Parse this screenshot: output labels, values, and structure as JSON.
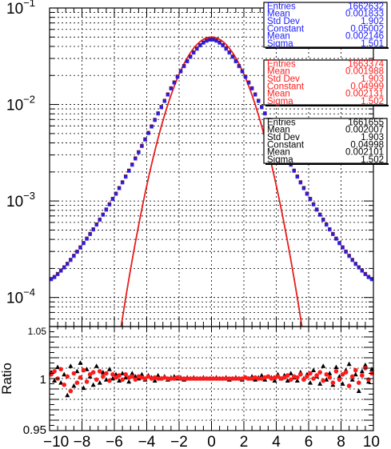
{
  "chart_data": {
    "type": "scatter",
    "main": {
      "x_range": [
        -10,
        10
      ],
      "y_scale": "log",
      "y_range": [
        5e-05,
        0.1
      ],
      "y_ticks": [
        {
          "value": 0.1,
          "base": "10",
          "exp": "−1"
        },
        {
          "value": 0.01,
          "base": "10",
          "exp": "−2"
        },
        {
          "value": 0.001,
          "base": "10",
          "exp": "−3"
        },
        {
          "value": 0.0001,
          "base": "10",
          "exp": "−4"
        }
      ],
      "grid": true,
      "series": [
        {
          "color": "#1a1aff",
          "marker": "square",
          "x": [
            -9.9,
            -9.7,
            -9.5,
            -9.3,
            -9.1,
            -8.9,
            -8.7,
            -8.5,
            -8.3,
            -8.1,
            -7.9,
            -7.7,
            -7.5,
            -7.3,
            -7.1,
            -6.9,
            -6.7,
            -6.5,
            -6.3,
            -6.1,
            -5.9,
            -5.7,
            -5.5,
            -5.3,
            -5.1,
            -4.9,
            -4.7,
            -4.5,
            -4.3,
            -4.1,
            -3.9,
            -3.7,
            -3.5,
            -3.3,
            -3.1,
            -2.9,
            -2.7,
            -2.5,
            -2.3,
            -2.1,
            -1.9,
            -1.7,
            -1.5,
            -1.3,
            -1.1,
            -0.9,
            -0.7,
            -0.5,
            -0.3,
            -0.1,
            0.1,
            0.3,
            0.5,
            0.7,
            0.9,
            1.1,
            1.3,
            1.5,
            1.7,
            1.9,
            2.1,
            2.3,
            2.5,
            2.7,
            2.9,
            3.1,
            3.3,
            3.5,
            3.7,
            3.9,
            4.1,
            4.3,
            4.5,
            4.7,
            4.9,
            5.1,
            5.3,
            5.5,
            5.7,
            5.9,
            6.1,
            6.3,
            6.5,
            6.7,
            6.9,
            7.1,
            7.3,
            7.5,
            7.7,
            7.9,
            8.1,
            8.3,
            8.5,
            8.7,
            8.9,
            9.1,
            9.3,
            9.5,
            9.7,
            9.9
          ],
          "y": [
            0.000155,
            0.000163,
            0.000175,
            0.00019,
            0.000205,
            0.000223,
            0.000245,
            0.00027,
            0.000298,
            0.00033,
            0.000366,
            0.000407,
            0.000455,
            0.000508,
            0.00057,
            0.00064,
            0.000722,
            0.000815,
            0.000923,
            0.00105,
            0.00119,
            0.00136,
            0.00156,
            0.00179,
            0.00206,
            0.00238,
            0.00276,
            0.0032,
            0.00372,
            0.00434,
            0.00507,
            0.00592,
            0.00692,
            0.00808,
            0.0094,
            0.0109,
            0.0127,
            0.0147,
            0.0169,
            0.0194,
            0.0221,
            0.025,
            0.0281,
            0.0313,
            0.0346,
            0.0379,
            0.0411,
            0.0438,
            0.0459,
            0.0471,
            0.0471,
            0.0459,
            0.0438,
            0.0411,
            0.0379,
            0.0346,
            0.0313,
            0.0281,
            0.025,
            0.0221,
            0.0194,
            0.0169,
            0.0147,
            0.0127,
            0.0109,
            0.0094,
            0.00808,
            0.00692,
            0.00592,
            0.00507,
            0.00434,
            0.00372,
            0.0032,
            0.00276,
            0.00238,
            0.00206,
            0.00179,
            0.00156,
            0.00136,
            0.00119,
            0.00105,
            0.000923,
            0.000815,
            0.000722,
            0.00064,
            0.00057,
            0.000508,
            0.000455,
            0.000407,
            0.000366,
            0.00033,
            0.000298,
            0.00027,
            0.000245,
            0.000223,
            0.000205,
            0.00019,
            0.000175,
            0.000163,
            0.000155
          ]
        }
      ],
      "fits": [
        {
          "color": "#000000",
          "constant": 0.04998,
          "mean": 0.002101,
          "sigma": 1.502
        },
        {
          "color": "#ff1a1a",
          "constant": 0.04999,
          "mean": 0.002131,
          "sigma": 1.502
        }
      ]
    },
    "ratio": {
      "ylabel": "Ratio",
      "y_range": [
        0.95,
        1.05
      ],
      "y_ticks": [
        {
          "value": 0.95,
          "label": "0.95"
        },
        {
          "value": 1.0,
          "label": "1"
        },
        {
          "value": 1.05,
          "label": "1.05"
        }
      ],
      "x_ticks": [
        {
          "value": -10,
          "label": "−10"
        },
        {
          "value": -8,
          "label": "−8"
        },
        {
          "value": -6,
          "label": "−6"
        },
        {
          "value": -4,
          "label": "−4"
        },
        {
          "value": -2,
          "label": "−2"
        },
        {
          "value": 0,
          "label": "0"
        },
        {
          "value": 2,
          "label": "2"
        },
        {
          "value": 4,
          "label": "4"
        },
        {
          "value": 6,
          "label": "6"
        },
        {
          "value": 8,
          "label": "8"
        },
        {
          "value": 10,
          "label": "10"
        }
      ],
      "grid": true,
      "series": [
        {
          "color": "#000000",
          "marker": "triangle",
          "x": [
            -9.9,
            -9.7,
            -9.5,
            -9.3,
            -9.1,
            -8.9,
            -8.7,
            -8.5,
            -8.3,
            -8.1,
            -7.9,
            -7.7,
            -7.5,
            -7.3,
            -7.1,
            -6.9,
            -6.7,
            -6.5,
            -6.3,
            -6.1,
            -5.9,
            -5.7,
            -5.5,
            -5.3,
            -5.1,
            -4.9,
            -4.7,
            -4.5,
            -4.3,
            -4.1,
            -3.9,
            -3.7,
            -3.5,
            -3.3,
            -3.1,
            -2.9,
            -2.7,
            -2.5,
            -2.3,
            -2.1,
            -1.9,
            -1.7,
            -1.5,
            -1.3,
            -1.1,
            -0.9,
            -0.7,
            -0.5,
            -0.3,
            -0.1,
            0.1,
            0.3,
            0.5,
            0.7,
            0.9,
            1.1,
            1.3,
            1.5,
            1.7,
            1.9,
            2.1,
            2.3,
            2.5,
            2.7,
            2.9,
            3.1,
            3.3,
            3.5,
            3.7,
            3.9,
            4.1,
            4.3,
            4.5,
            4.7,
            4.9,
            5.1,
            5.3,
            5.5,
            5.7,
            5.9,
            6.1,
            6.3,
            6.5,
            6.7,
            6.9,
            7.1,
            7.3,
            7.5,
            7.7,
            7.9,
            8.1,
            8.3,
            8.5,
            8.7,
            8.9,
            9.1,
            9.3,
            9.5,
            9.7,
            9.9
          ],
          "y": [
            1.006,
            0.998,
            1.011,
            0.996,
            1.004,
            0.984,
            1.012,
            0.993,
            1.007,
            1.015,
            0.991,
            1.009,
            1.002,
            0.994,
            1.012,
            0.996,
            1.006,
            0.999,
            1.009,
            1.0,
            1.004,
            0.998,
            1.005,
            1.001,
            0.997,
            1.005,
            1.002,
            1.0,
            1.004,
            0.999,
            1.003,
            1.001,
            0.998,
            1.003,
            1.0,
            1.002,
            0.999,
            1.001,
            1.002,
            1.0,
            1.001,
            0.999,
            1.001,
            1.0,
            1.001,
            1.0,
            1.0,
            1.001,
            1.0,
            1.0,
            1.0,
            1.001,
            1.0,
            1.0,
            1.001,
            0.999,
            1.0,
            1.001,
            1.0,
            0.999,
            1.001,
            1.0,
            1.002,
            0.999,
            1.001,
            1.003,
            0.999,
            1.002,
            1.001,
            0.998,
            1.004,
            1.0,
            1.003,
            0.998,
            1.005,
            1.001,
            0.998,
            1.006,
            1.0,
            1.004,
            0.996,
            1.008,
            1.002,
            0.995,
            1.012,
            0.999,
            1.005,
            0.994,
            1.011,
            1.002,
            0.995,
            1.008,
            1.014,
            0.999,
            1.004,
            0.988,
            1.007,
            1.013,
            0.997,
            1.009
          ]
        },
        {
          "color": "#ff1a1a",
          "marker": "circle",
          "x": [
            -9.9,
            -9.7,
            -9.5,
            -9.3,
            -9.1,
            -8.9,
            -8.7,
            -8.5,
            -8.3,
            -8.1,
            -7.9,
            -7.7,
            -7.5,
            -7.3,
            -7.1,
            -6.9,
            -6.7,
            -6.5,
            -6.3,
            -6.1,
            -5.9,
            -5.7,
            -5.5,
            -5.3,
            -5.1,
            -4.9,
            -4.7,
            -4.5,
            -4.3,
            -4.1,
            -3.9,
            -3.7,
            -3.5,
            -3.3,
            -3.1,
            -2.9,
            -2.7,
            -2.5,
            -2.3,
            -2.1,
            -1.9,
            -1.7,
            -1.5,
            -1.3,
            -1.1,
            -0.9,
            -0.7,
            -0.5,
            -0.3,
            -0.1,
            0.1,
            0.3,
            0.5,
            0.7,
            0.9,
            1.1,
            1.3,
            1.5,
            1.7,
            1.9,
            2.1,
            2.3,
            2.5,
            2.7,
            2.9,
            3.1,
            3.3,
            3.5,
            3.7,
            3.9,
            4.1,
            4.3,
            4.5,
            4.7,
            4.9,
            5.1,
            5.3,
            5.5,
            5.7,
            5.9,
            6.1,
            6.3,
            6.5,
            6.7,
            6.9,
            7.1,
            7.3,
            7.5,
            7.7,
            7.9,
            8.1,
            8.3,
            8.5,
            8.7,
            8.9,
            9.1,
            9.3,
            9.5,
            9.7,
            9.9
          ],
          "y": [
            1.004,
            1.007,
            1.0,
            1.009,
            0.994,
            1.002,
            0.988,
            1.005,
            0.996,
            1.001,
            1.008,
            0.997,
            1.004,
            1.006,
            0.999,
            1.007,
            1.002,
            1.005,
            0.998,
            1.004,
            1.001,
            1.003,
            0.999,
            1.004,
            1.001,
            1.002,
            0.999,
            1.002,
            1.001,
            1.0,
            1.002,
            1.0,
            1.001,
            1.0,
            1.0,
            1.001,
            1.0,
            1.0,
            1.0,
            1.001,
            1.0,
            1.0,
            1.0,
            1.0,
            1.0,
            1.0,
            1.0,
            1.0,
            1.0,
            1.0,
            1.0,
            1.0,
            1.0,
            1.0,
            1.0,
            1.0,
            1.0,
            1.0,
            1.0,
            1.0,
            1.001,
            1.0,
            1.0,
            1.001,
            1.0,
            1.0,
            1.001,
            1.002,
            1.0,
            1.001,
            1.002,
            1.0,
            1.001,
            1.003,
            0.999,
            1.002,
            1.001,
            1.004,
            0.999,
            1.002,
            1.005,
            1.0,
            1.003,
            1.006,
            0.998,
            1.004,
            1.001,
            0.996,
            1.007,
            0.999,
            1.004,
            1.006,
            0.993,
            1.002,
            1.008,
            0.996,
            1.003,
            1.01,
            0.999,
            1.005
          ]
        }
      ]
    },
    "stats_boxes": [
      {
        "color": "#1a1aff",
        "rows": [
          {
            "label": "Entries",
            "value": "1662632"
          },
          {
            "label": "Mean",
            "value": "0.001833"
          },
          {
            "label": "Std Dev",
            "value": "1.902"
          },
          {
            "label": "Constant",
            "value": "0.05002"
          },
          {
            "label": "Mean",
            "value": "0.002146"
          },
          {
            "label": "Sigma",
            "value": "1.501"
          }
        ]
      },
      {
        "color": "#ff1a1a",
        "rows": [
          {
            "label": "Entries",
            "value": "1663374"
          },
          {
            "label": "Mean",
            "value": "0.001988"
          },
          {
            "label": "Std Dev",
            "value": "1.903"
          },
          {
            "label": "Constant",
            "value": "0.04999"
          },
          {
            "label": "Mean",
            "value": "0.002131"
          },
          {
            "label": "Sigma",
            "value": "1.502"
          }
        ]
      },
      {
        "color": "#000000",
        "rows": [
          {
            "label": "Entries",
            "value": "1661655"
          },
          {
            "label": "Mean",
            "value": "0.002007"
          },
          {
            "label": "Std Dev",
            "value": "1.903"
          },
          {
            "label": "Constant",
            "value": "0.04998"
          },
          {
            "label": "Mean",
            "value": "0.002101"
          },
          {
            "label": "Sigma",
            "value": "1.502"
          }
        ]
      }
    ]
  }
}
